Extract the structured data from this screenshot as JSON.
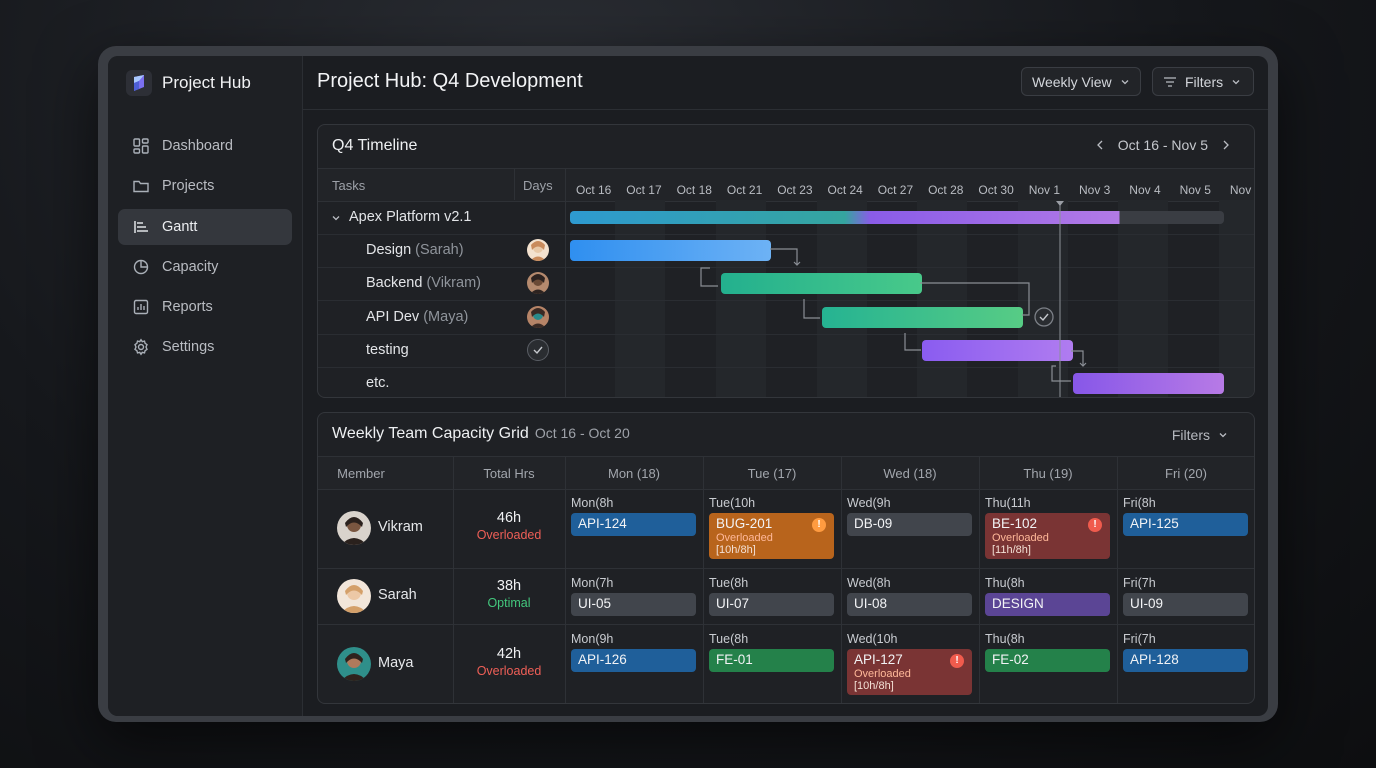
{
  "app": {
    "name": "Project Hub"
  },
  "sidebar": {
    "items": [
      {
        "label": "Dashboard",
        "icon": "grid-icon"
      },
      {
        "label": "Projects",
        "icon": "folder-icon"
      },
      {
        "label": "Gantt",
        "icon": "gantt-icon",
        "active": true
      },
      {
        "label": "Capacity",
        "icon": "pie-chart-icon"
      },
      {
        "label": "Reports",
        "icon": "bar-chart-icon"
      },
      {
        "label": "Settings",
        "icon": "gear-icon"
      }
    ]
  },
  "header": {
    "title": "Project Hub: Q4 Development",
    "view_select": "Weekly View",
    "filters_label": "Filters"
  },
  "timeline": {
    "title": "Q4 Timeline",
    "range": "Oct 16 - Nov 5",
    "col_tasks": "Tasks",
    "col_days": "Days",
    "dates": [
      "Oct 16",
      "Oct 17",
      "Oct 18",
      "Oct 21",
      "Oct 23",
      "Oct 24",
      "Oct 27",
      "Oct 28",
      "Oct 30",
      "Nov 1",
      "Nov 3",
      "Nov 4",
      "Nov 5",
      "Nov"
    ],
    "project": {
      "name": "Apex Platform v2.1"
    },
    "tasks": [
      {
        "name": "Design",
        "who": "(Sarah)",
        "marker": "avatar-sarah",
        "color_from": "#2f8ff0",
        "color_to": "#6db2f5"
      },
      {
        "name": "Backend",
        "who": "(Vikram)",
        "marker": "avatar-vikram",
        "color_from": "#23b08e",
        "color_to": "#48c98a"
      },
      {
        "name": "API Dev",
        "who": "(Maya)",
        "marker": "avatar-maya",
        "color_from": "#25b392",
        "color_to": "#57cc85"
      },
      {
        "name": "testing",
        "who": "",
        "marker": "check-icon",
        "color_from": "#8a5cf0",
        "color_to": "#b07cf0"
      },
      {
        "name": "etc.",
        "who": "",
        "marker": "",
        "color_from": "#8757e8",
        "color_to": "#b77ae6"
      }
    ]
  },
  "capacity": {
    "title": "Weekly Team Capacity Grid",
    "range": "Oct 16 - Oct 20",
    "filters_label": "Filters",
    "headers": [
      "Member",
      "Total Hrs",
      "Mon (18)",
      "Tue (17)",
      "Wed (18)",
      "Thu (19)",
      "Fri (20)"
    ],
    "members": [
      {
        "name": "Vikram",
        "total": "46h",
        "status": "Overloaded",
        "status_color": "#ef5f57",
        "days": [
          {
            "label": "Mon(8h",
            "chip": "API-124",
            "color": "#1f5f9a"
          },
          {
            "label": "Tue(10h",
            "chip": "BUG-201",
            "color": "#b8641c",
            "over": "Overloaded",
            "ratio": "[10h/8h]",
            "warn": true
          },
          {
            "label": "Wed(9h",
            "chip": "DB-09",
            "color": "#41454c"
          },
          {
            "label": "Thu(11h",
            "chip": "BE-102",
            "color": "#7a3434",
            "over": "Overloaded",
            "ratio": "[11h/8h]",
            "warn": true
          },
          {
            "label": "Fri(8h",
            "chip": "API-125",
            "color": "#1f5f9a"
          }
        ]
      },
      {
        "name": "Sarah",
        "total": "38h",
        "status": "Optimal",
        "status_color": "#43c77d",
        "days": [
          {
            "label": "Mon(7h",
            "chip": "UI-05",
            "color": "#41454c"
          },
          {
            "label": "Tue(8h",
            "chip": "UI-07",
            "color": "#41454c"
          },
          {
            "label": "Wed(8h",
            "chip": "UI-08",
            "color": "#41454c"
          },
          {
            "label": "Thu(8h",
            "chip": "DESIGN",
            "color": "#5b4595"
          },
          {
            "label": "Fri(7h",
            "chip": "UI-09",
            "color": "#41454c"
          }
        ]
      },
      {
        "name": "Maya",
        "total": "42h",
        "status": "Overloaded",
        "status_color": "#ef5f57",
        "days": [
          {
            "label": "Mon(9h",
            "chip": "API-126",
            "color": "#1f5f9a"
          },
          {
            "label": "Tue(8h",
            "chip": "FE-01",
            "color": "#24814a"
          },
          {
            "label": "Wed(10h",
            "chip": "API-127",
            "color": "#7a3434",
            "over": "Overloaded",
            "ratio": "[10h/8h]",
            "warn": true
          },
          {
            "label": "Thu(8h",
            "chip": "FE-02",
            "color": "#24814a"
          },
          {
            "label": "Fri(7h",
            "chip": "API-128",
            "color": "#1f5f9a"
          }
        ]
      }
    ]
  }
}
